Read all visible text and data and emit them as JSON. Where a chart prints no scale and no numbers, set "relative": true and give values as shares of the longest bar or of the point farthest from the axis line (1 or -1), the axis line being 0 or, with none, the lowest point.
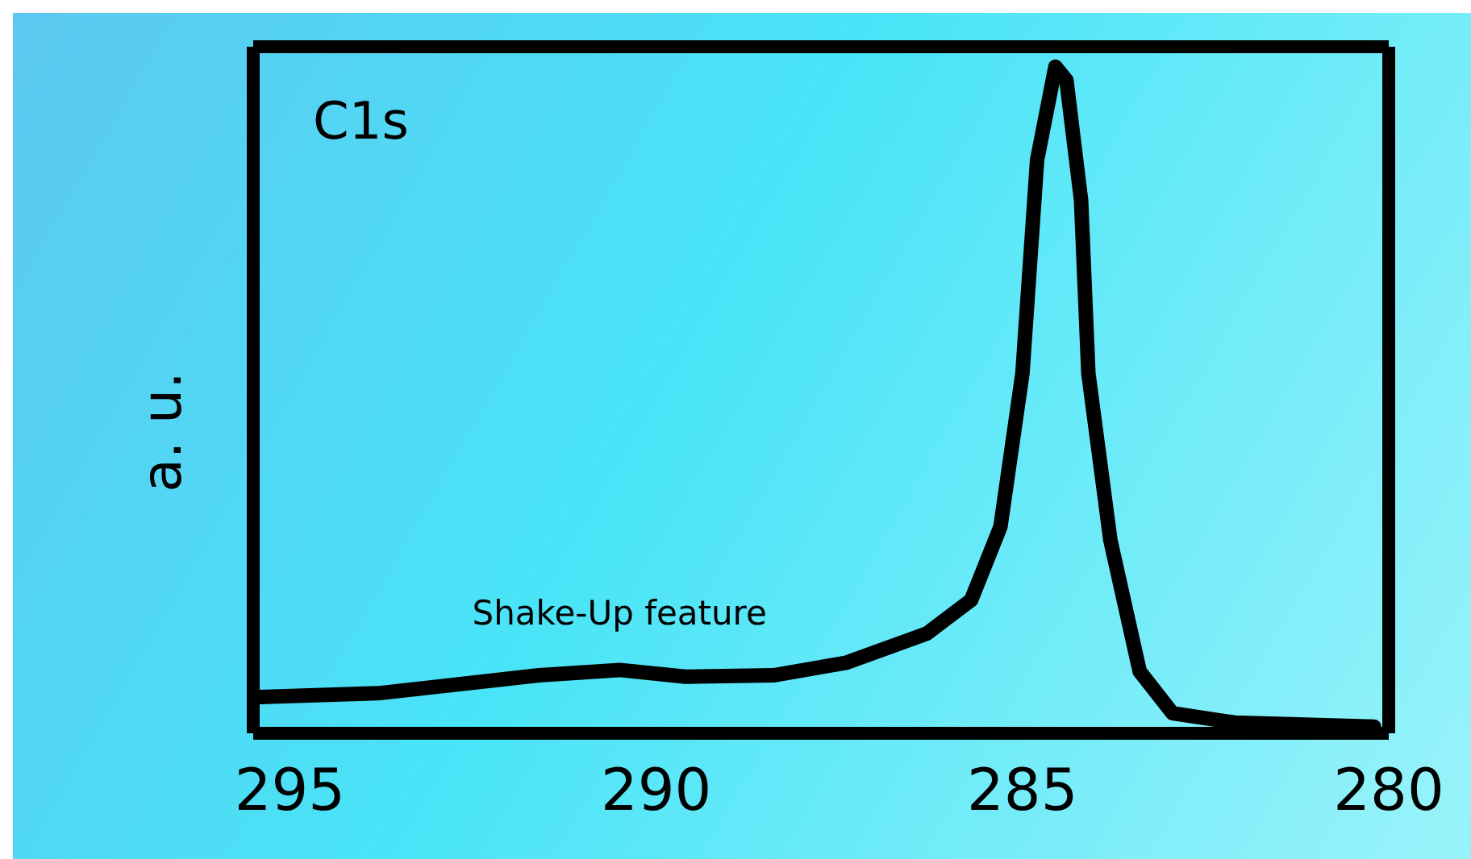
{
  "chart_data": {
    "type": "line",
    "title": "C1s",
    "ylabel": "a. u.",
    "relative": true,
    "xlim": [
      295.5,
      280
    ],
    "xticks": [
      295,
      290,
      285,
      280
    ],
    "tick_labels": "x",
    "grid": false,
    "legend": false,
    "marker": "none",
    "line_style": "solid",
    "annotations": [
      {
        "text": "Shake-Up feature",
        "x": 290.5,
        "y": 0.095
      }
    ],
    "series": [
      {
        "color": "#000000",
        "x": [
          295.5,
          293.8,
          291.6,
          290.5,
          289.6,
          288.4,
          287.4,
          286.3,
          285.7,
          285.3,
          285.0,
          284.8,
          284.55,
          284.4,
          284.2,
          284.1,
          283.8,
          283.4,
          282.95,
          282.1,
          280.2
        ],
        "values": [
          0.054,
          0.06,
          0.087,
          0.095,
          0.085,
          0.087,
          0.106,
          0.15,
          0.2,
          0.31,
          0.54,
          0.86,
          1.0,
          0.98,
          0.8,
          0.54,
          0.29,
          0.093,
          0.03,
          0.016,
          0.01
        ]
      }
    ]
  }
}
